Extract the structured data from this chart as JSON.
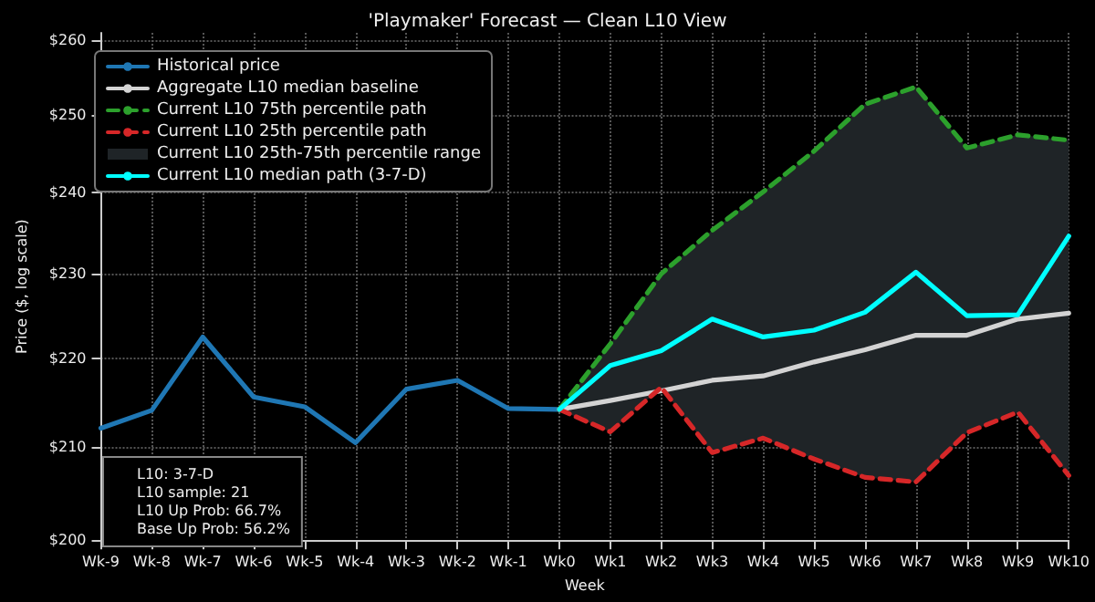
{
  "chart_data": {
    "type": "line",
    "title": "'Playmaker' Forecast — Clean L10 View",
    "xlabel": "Week",
    "ylabel": "Price ($, log scale)",
    "categories": [
      "Wk-9",
      "Wk-8",
      "Wk-7",
      "Wk-6",
      "Wk-5",
      "Wk-4",
      "Wk-3",
      "Wk-2",
      "Wk-1",
      "Wk0",
      "Wk1",
      "Wk2",
      "Wk3",
      "Wk4",
      "Wk5",
      "Wk6",
      "Wk7",
      "Wk8",
      "Wk9",
      "Wk10"
    ],
    "series": [
      {
        "name": "Historical price",
        "color": "#1f77b4",
        "values": [
          212.1,
          214.1,
          222.5,
          215.6,
          214.5,
          210.5,
          216.5,
          217.5,
          214.3,
          214.2,
          null,
          null,
          null,
          null,
          null,
          null,
          null,
          null,
          null,
          null
        ]
      },
      {
        "name": "Aggregate L10 median baseline",
        "color": "#d3d3d3",
        "values": [
          null,
          null,
          null,
          null,
          null,
          null,
          null,
          null,
          null,
          214.2,
          215.2,
          216.3,
          217.5,
          218.0,
          219.6,
          221.0,
          222.7,
          222.7,
          224.6,
          225.3
        ]
      },
      {
        "name": "Current L10 75th percentile path",
        "color": "#2ca02c",
        "line_style": "dashed",
        "values": [
          null,
          null,
          null,
          null,
          null,
          null,
          null,
          null,
          null,
          214.2,
          221.7,
          230.0,
          235.3,
          240.1,
          245.3,
          251.4,
          253.7,
          245.7,
          247.4,
          246.7
        ]
      },
      {
        "name": "Current L10 25th percentile path",
        "color": "#d62728",
        "line_style": "dashed",
        "values": [
          null,
          null,
          null,
          null,
          null,
          null,
          null,
          null,
          null,
          214.2,
          211.7,
          216.7,
          209.4,
          211.0,
          208.7,
          206.7,
          206.2,
          211.6,
          213.9,
          206.9
        ]
      },
      {
        "name": "Current L10 25th-75th percentile range",
        "type": "area",
        "color": "#1f2427",
        "values": [
          null,
          null,
          null,
          null,
          null,
          null,
          null,
          null,
          null,
          null,
          null,
          null,
          null,
          null,
          null,
          null,
          null,
          null,
          null,
          null
        ],
        "lower": [
          null,
          null,
          null,
          null,
          null,
          null,
          null,
          null,
          null,
          214.2,
          211.7,
          216.7,
          209.4,
          211.0,
          208.7,
          206.7,
          206.2,
          211.6,
          213.9,
          206.9
        ],
        "upper": [
          null,
          null,
          null,
          null,
          null,
          null,
          null,
          null,
          null,
          214.2,
          221.7,
          230.0,
          235.3,
          240.1,
          245.3,
          251.4,
          253.7,
          245.7,
          247.4,
          246.7
        ]
      },
      {
        "name": "Current L10 median path (3-7-D)",
        "color": "#00ffff",
        "values": [
          null,
          null,
          null,
          null,
          null,
          null,
          null,
          null,
          null,
          214.2,
          219.2,
          220.9,
          224.6,
          222.5,
          223.3,
          225.4,
          230.2,
          225.0,
          225.1,
          234.6
        ]
      }
    ],
    "log": "y",
    "ylim": [
      200,
      261
    ],
    "yticks": [
      {
        "value": 200,
        "label": "$200"
      },
      {
        "value": 210,
        "label": "$210"
      },
      {
        "value": 220,
        "label": "$220"
      },
      {
        "value": 230,
        "label": "$230"
      },
      {
        "value": 240,
        "label": "$240"
      },
      {
        "value": 250,
        "label": "$250"
      },
      {
        "value": 260,
        "label": "$260"
      }
    ],
    "grid": true,
    "legend": "top left",
    "marker": "none",
    "annotations": [
      "L10: 3-7-D",
      "L10 sample: 21",
      "L10 Up Prob: 66.7%",
      "Base Up Prob: 56.2%"
    ]
  }
}
